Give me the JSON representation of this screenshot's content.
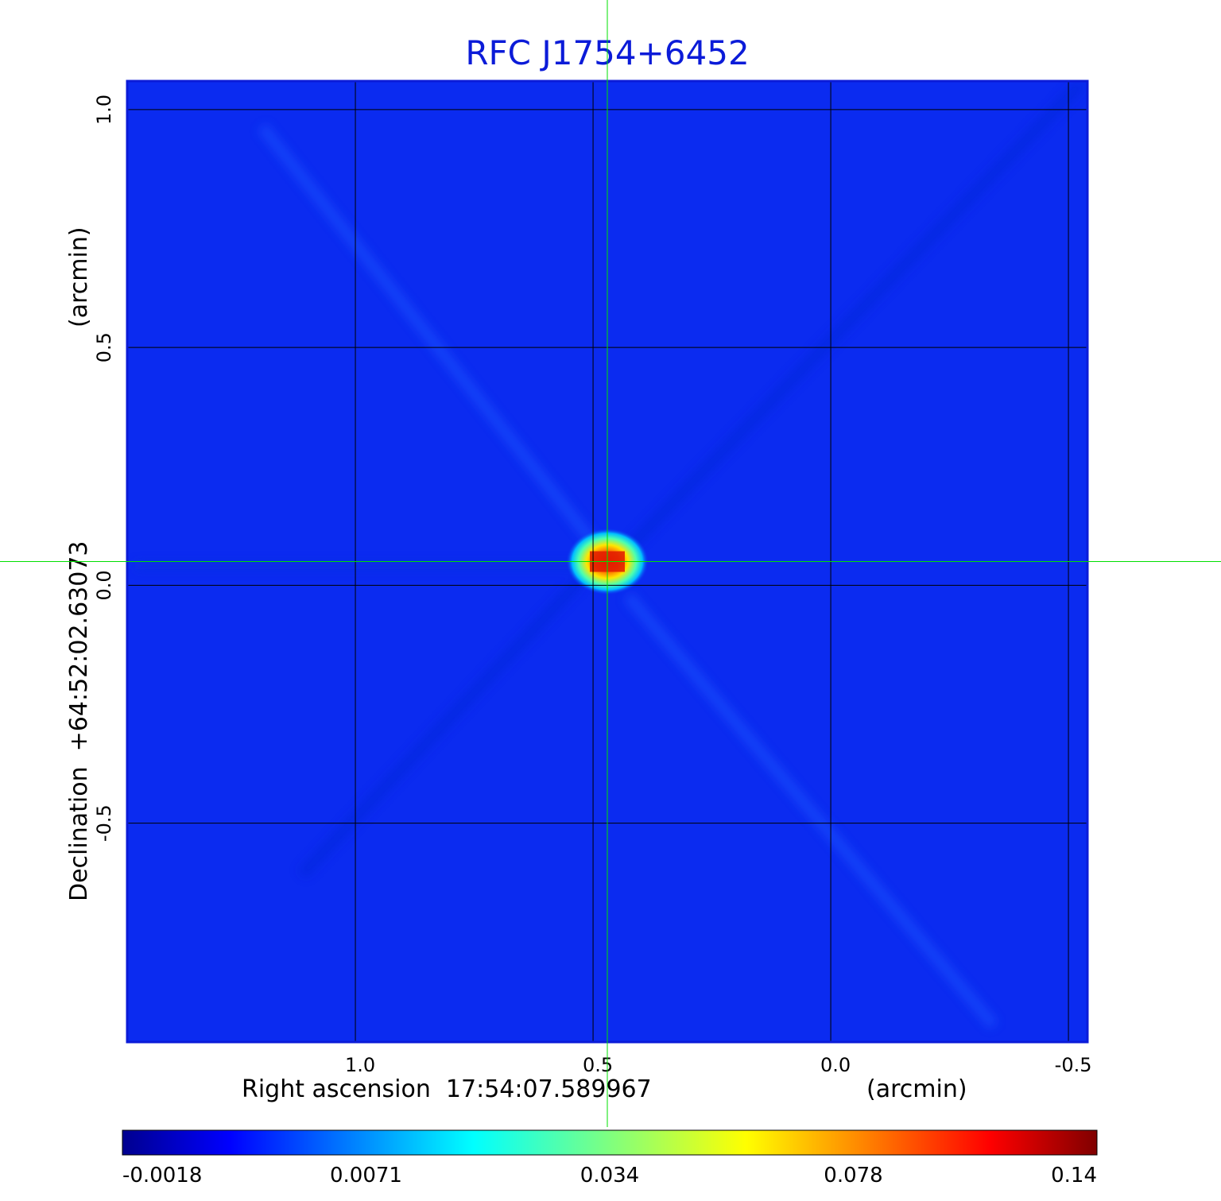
{
  "chart_data": {
    "type": "heatmap",
    "title": "RFC J1754+6452",
    "xlabel": "Right ascension  17:54:07.589967",
    "xunit": "(arcmin)",
    "ylabel": "Declination  +64:52:02.63073",
    "yunit": "(arcmin)",
    "x_ticks": [
      1.0,
      0.5,
      0.0,
      -0.5
    ],
    "x_tick_labels": [
      "1.0",
      "0.5",
      "0.0",
      "-0.5"
    ],
    "y_ticks": [
      1.0,
      0.5,
      0.0,
      -0.5
    ],
    "y_tick_labels": [
      "1.0",
      "0.5",
      "0.0",
      "-0.5"
    ],
    "xlim": [
      1.48,
      -0.54
    ],
    "ylim": [
      -0.96,
      1.06
    ],
    "grid": true,
    "colormap": "jet",
    "colorbar_ticks": [
      "-0.0018",
      "0.0071",
      "0.034",
      "0.078",
      "0.14"
    ],
    "source_peak": {
      "x": 0.47,
      "y": 0.05,
      "value": 0.14
    },
    "crosshair": {
      "x": 0.47,
      "y": 0.05,
      "color": "#00e000"
    },
    "colors": {
      "title": "#0b1bd8",
      "frame": "#0b1bd8",
      "background_map": "#0b2bf0",
      "grid": "#000000"
    }
  }
}
